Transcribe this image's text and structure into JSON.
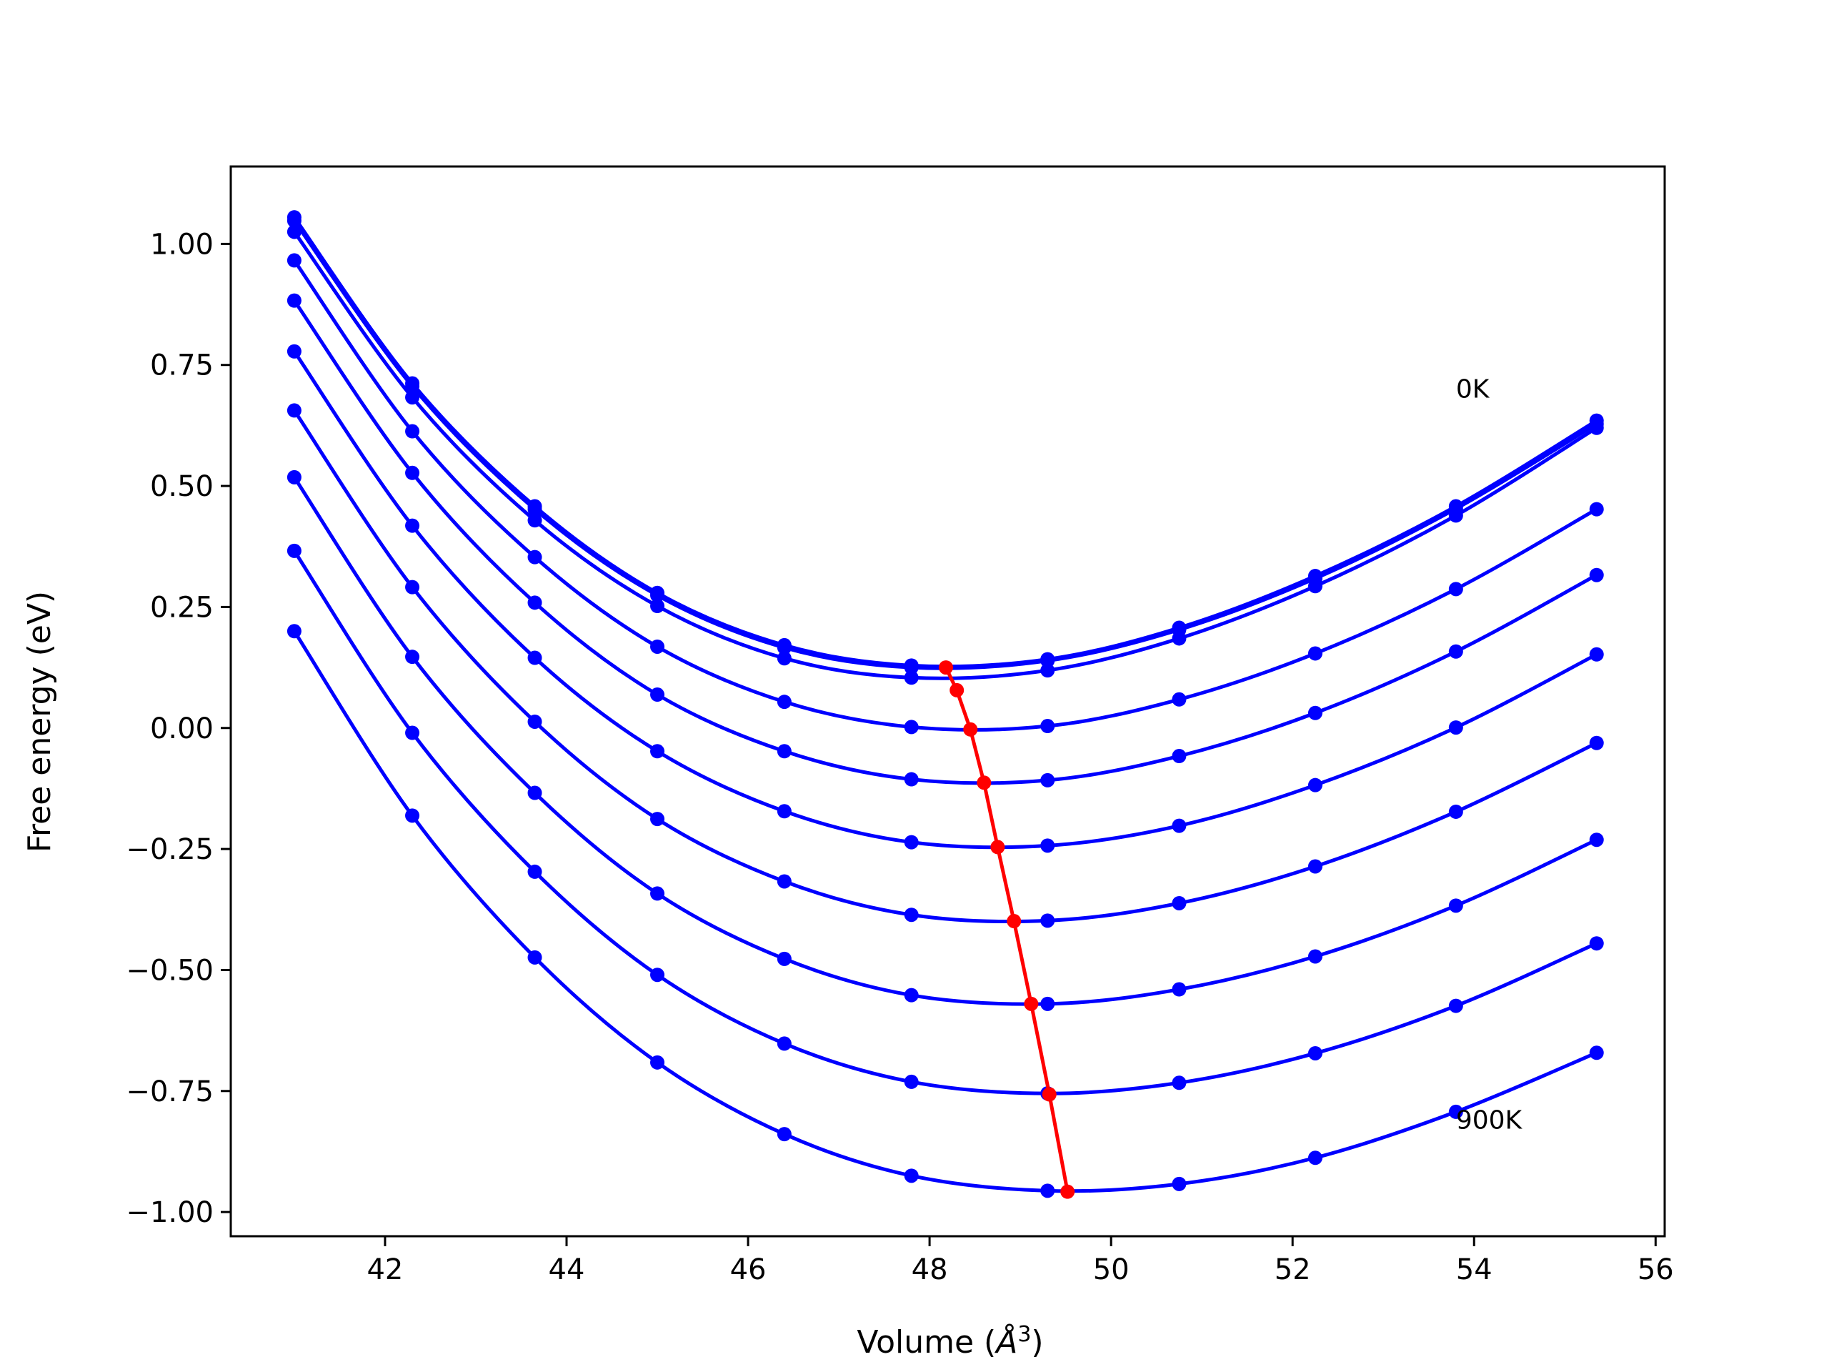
{
  "chart_data": {
    "type": "line",
    "xlabel": "Volume (Å³)",
    "xlabel_parts": {
      "pre": "Volume (",
      "sym": "Å",
      "sup": "3",
      "post": ")"
    },
    "ylabel": "Free energy (eV)",
    "xlim": [
      40.3,
      56.1
    ],
    "ylim": [
      -1.05,
      1.16
    ],
    "xticks": [
      42,
      44,
      46,
      48,
      50,
      52,
      54,
      56
    ],
    "xtick_labels": [
      "42",
      "44",
      "46",
      "48",
      "50",
      "52",
      "54",
      "56"
    ],
    "yticks": [
      1.0,
      0.75,
      0.5,
      0.25,
      0.0,
      -0.25,
      -0.5,
      -0.75,
      -1.0
    ],
    "ytick_labels": [
      "1.00",
      "0.75",
      "0.50",
      "0.25",
      "0.00",
      "−0.25",
      "−0.50",
      "−0.75",
      "−1.00"
    ],
    "grid": false,
    "curve_color": "#0000ff",
    "minima_color": "#ff0000",
    "x": [
      41.0,
      42.3,
      43.65,
      45.0,
      46.4,
      47.8,
      49.3,
      50.75,
      52.25,
      53.8,
      55.35
    ],
    "series": [
      {
        "values": [
          1.055,
          0.712,
          0.458,
          0.279,
          0.171,
          0.129,
          0.142,
          0.207,
          0.314,
          0.458,
          0.635
        ]
      },
      {
        "values": [
          1.048,
          0.706,
          0.452,
          0.274,
          0.166,
          0.125,
          0.139,
          0.203,
          0.309,
          0.453,
          0.628
        ]
      },
      {
        "values": [
          1.025,
          0.683,
          0.429,
          0.252,
          0.144,
          0.104,
          0.119,
          0.185,
          0.293,
          0.439,
          0.62
        ]
      },
      {
        "values": [
          0.966,
          0.613,
          0.353,
          0.168,
          0.054,
          0.002,
          0.004,
          0.059,
          0.154,
          0.287,
          0.452
        ]
      },
      {
        "values": [
          0.883,
          0.527,
          0.259,
          0.069,
          -0.048,
          -0.106,
          -0.108,
          -0.058,
          0.031,
          0.158,
          0.316
        ]
      },
      {
        "values": [
          0.778,
          0.418,
          0.145,
          -0.048,
          -0.172,
          -0.236,
          -0.243,
          -0.202,
          -0.118,
          0.001,
          0.152
        ]
      },
      {
        "values": [
          0.656,
          0.291,
          0.013,
          -0.188,
          -0.317,
          -0.386,
          -0.398,
          -0.362,
          -0.286,
          -0.173,
          -0.031
        ]
      },
      {
        "values": [
          0.518,
          0.147,
          -0.134,
          -0.342,
          -0.477,
          -0.552,
          -0.57,
          -0.54,
          -0.472,
          -0.367,
          -0.231
        ]
      },
      {
        "values": [
          0.366,
          -0.01,
          -0.297,
          -0.51,
          -0.652,
          -0.731,
          -0.755,
          -0.733,
          -0.672,
          -0.574,
          -0.445
        ]
      },
      {
        "values": [
          0.2,
          -0.181,
          -0.474,
          -0.691,
          -0.839,
          -0.925,
          -0.956,
          -0.942,
          -0.888,
          -0.793,
          -0.671
        ]
      }
    ],
    "minima": {
      "x": [
        48.18,
        48.3,
        48.45,
        48.6,
        48.75,
        48.93,
        49.12,
        49.32,
        49.52
      ],
      "y": [
        0.125,
        0.078,
        -0.003,
        -0.113,
        -0.246,
        -0.399,
        -0.57,
        -0.757,
        -0.958
      ]
    },
    "annotations": [
      {
        "text": "0K",
        "x": 53.8,
        "y": 0.7
      },
      {
        "text": "900K",
        "x": 53.8,
        "y": -0.81
      }
    ]
  }
}
